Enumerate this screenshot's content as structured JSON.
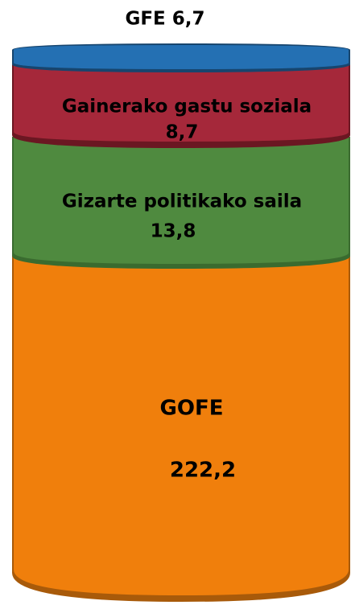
{
  "title": "GFE 6,7",
  "segments": [
    {
      "label": "Gainerako gastu soziala",
      "value": "8,7"
    },
    {
      "label": "Gizarte politikako saila",
      "value": "13,8"
    },
    {
      "label": "GOFE",
      "value": "222,2"
    }
  ]
}
